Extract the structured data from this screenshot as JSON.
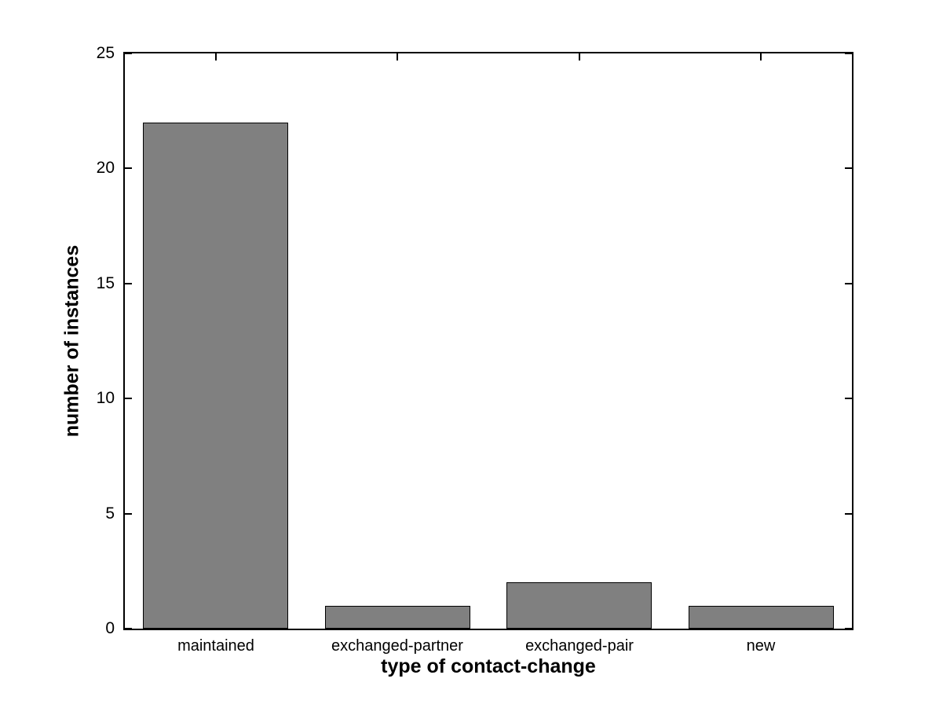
{
  "chart_data": {
    "type": "bar",
    "categories": [
      "maintained",
      "exchanged-partner",
      "exchanged-pair",
      "new"
    ],
    "values": [
      22,
      1,
      2,
      1
    ],
    "title": "",
    "xlabel": "type of contact-change",
    "ylabel": "number of instances",
    "ylim": [
      0,
      25
    ],
    "yticks": [
      0,
      5,
      10,
      15,
      20,
      25
    ],
    "bar_width_fraction": 0.8,
    "bar_color": "#808080",
    "bar_edge_color": "#000000",
    "axis_color": "#000000",
    "background_color": "#ffffff",
    "grid": false,
    "legend_position": "none",
    "tick_direction": "in"
  }
}
